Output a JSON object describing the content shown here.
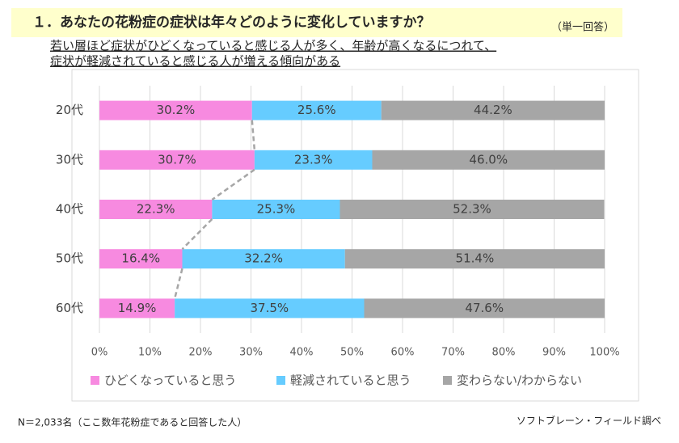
{
  "header": {
    "title": "１．あなたの花粉症の症状は年々どのように変化していますか？",
    "note": "（単一回答）",
    "summary": [
      "若い層ほど症状がひどくなっていると感じる人が多く、年齢が高くなるにつれて、",
      "症状が軽減されていると感じる人が増える傾向がある"
    ]
  },
  "chart_data": {
    "type": "stacked-bar-horizontal",
    "categories": [
      "20代",
      "30代",
      "40代",
      "50代",
      "60代"
    ],
    "series": [
      {
        "name": "ひどくなっていると思う",
        "color": "#f78ae0",
        "values": [
          30.2,
          30.7,
          22.3,
          16.4,
          14.9
        ],
        "value_labels": [
          "30.2%",
          "30.7%",
          "22.3%",
          "16.4%",
          "14.9%"
        ]
      },
      {
        "name": "軽減されていると思う",
        "color": "#66ccff",
        "values": [
          25.6,
          23.3,
          25.3,
          32.2,
          37.5
        ],
        "value_labels": [
          "25.6%",
          "23.3%",
          "25.3%",
          "32.2%",
          "37.5%"
        ]
      },
      {
        "name": "変わらない/わからない",
        "color": "#a6a6a6",
        "values": [
          44.2,
          46.0,
          52.3,
          51.4,
          47.6
        ],
        "value_labels": [
          "44.2%",
          "46.0%",
          "52.3%",
          "51.4%",
          "47.6%"
        ]
      }
    ],
    "xlim": [
      0,
      100
    ],
    "xticks": [
      {
        "value": 0,
        "label": "0%"
      },
      {
        "value": 10,
        "label": "10%"
      },
      {
        "value": 20,
        "label": "20%"
      },
      {
        "value": 30,
        "label": "30%"
      },
      {
        "value": 40,
        "label": "40%"
      },
      {
        "value": 50,
        "label": "50%"
      },
      {
        "value": 60,
        "label": "60%"
      },
      {
        "value": 70,
        "label": "70%"
      },
      {
        "value": 80,
        "label": "80%"
      },
      {
        "value": 90,
        "label": "90%"
      },
      {
        "value": 100,
        "label": "100%"
      }
    ],
    "grid": true,
    "connector_series": 0
  },
  "footer": {
    "sample": "N＝2,033名（ここ数年花粉症であると回答した人）",
    "source": "ソフトブレーン・フィールド調べ"
  }
}
